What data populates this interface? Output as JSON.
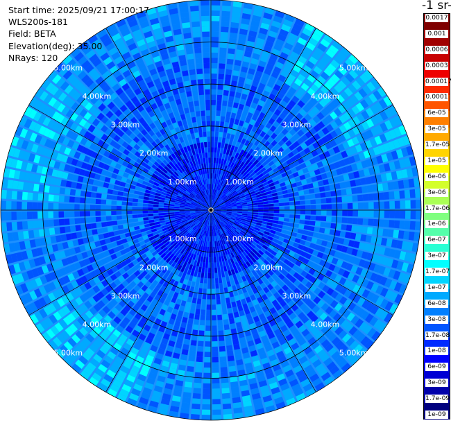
{
  "info": {
    "start_time": "Start time: 2025/09/21 17:00:17",
    "device": "WLS200s-181",
    "field": "Field: BETA",
    "elevation": "Elevation(deg): 35.00",
    "nrays": "NRays: 120"
  },
  "colorbar": {
    "units": "-1 sr-",
    "labels": [
      "0.0017",
      "0.001",
      "0.0006",
      "0.0003",
      "0.00017",
      "0.0001",
      "6e-05",
      "3e-05",
      "1.7e-05",
      "1e-05",
      "6e-06",
      "3e-06",
      "1.7e-06",
      "1e-06",
      "6e-07",
      "3e-07",
      "1.7e-07",
      "1e-07",
      "6e-08",
      "3e-08",
      "1.7e-08",
      "1e-08",
      "6e-09",
      "3e-09",
      "1.7e-09",
      "1e-09"
    ],
    "colors": [
      "#7f0000",
      "#a00000",
      "#c80000",
      "#ee0000",
      "#ff2a00",
      "#ff5500",
      "#ff7f00",
      "#ffaa00",
      "#ffd400",
      "#ffff00",
      "#d4ff2b",
      "#aaff55",
      "#7fff7f",
      "#55ffaa",
      "#2affd4",
      "#00ffff",
      "#00d4ff",
      "#00aaff",
      "#007fff",
      "#0055ff",
      "#002aff",
      "#0000ff",
      "#0000d4",
      "#0000aa",
      "#00007f"
    ]
  },
  "range_labels": [
    "1.00km",
    "2.00km",
    "3.00km",
    "4.00km",
    "5.00km"
  ]
}
